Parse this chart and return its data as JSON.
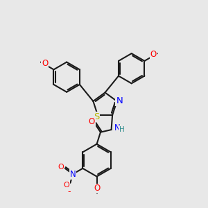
{
  "bg_color": "#e8e8e8",
  "bond_color": "#1a1a1a",
  "bond_width": 1.5,
  "atom_colors": {
    "S": "#b8b800",
    "N": "#0000ff",
    "O": "#ff0000",
    "H": "#2e8b8b",
    "C": "#1a1a1a"
  },
  "font_size": 8.5,
  "figsize": [
    3.0,
    3.0
  ],
  "dpi": 100
}
